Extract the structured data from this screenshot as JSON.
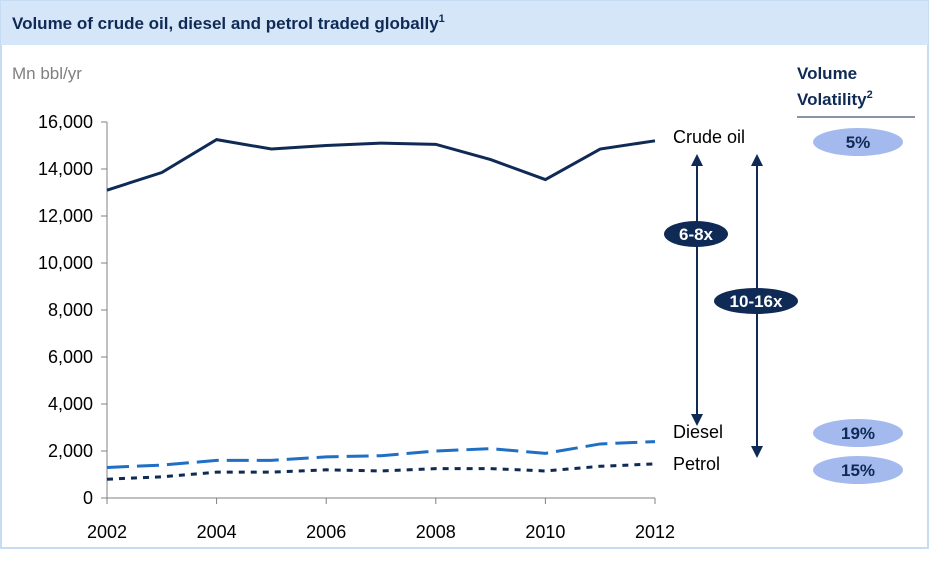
{
  "chart_data": {
    "type": "line",
    "title": "Volume of crude oil, diesel and petrol traded globally",
    "title_footnote": "1",
    "y_axis_label": "Mn bbl/yr",
    "x": [
      2002,
      2003,
      2004,
      2005,
      2006,
      2007,
      2008,
      2009,
      2010,
      2011,
      2012
    ],
    "xlim": [
      2002,
      2012
    ],
    "xticks": [
      2002,
      2004,
      2006,
      2008,
      2010,
      2012
    ],
    "ylim": [
      0,
      16000
    ],
    "yticks": [
      0,
      {
        "value": 2000,
        "label": "2,000"
      },
      {
        "value": 4000,
        "label": "4,000"
      },
      {
        "value": 6000,
        "label": "6,000"
      },
      {
        "value": 8000,
        "label": "8,000"
      },
      {
        "value": 10000,
        "label": "10,000"
      },
      {
        "value": 12000,
        "label": "12,000"
      },
      {
        "value": 14000,
        "label": "14,000"
      },
      {
        "value": 16000,
        "label": "16,000"
      }
    ],
    "series": [
      {
        "name": "Crude oil",
        "color": "#0f2a55",
        "dash": "solid",
        "values": [
          13100,
          13850,
          15250,
          14850,
          15000,
          15100,
          15050,
          14400,
          13550,
          14850,
          15200
        ]
      },
      {
        "name": "Diesel",
        "color": "#1f6fc4",
        "dash": "dashed",
        "values": [
          1300,
          1400,
          1600,
          1600,
          1750,
          1800,
          2000,
          2100,
          1900,
          2300,
          2400
        ]
      },
      {
        "name": "Petrol",
        "color": "#0f2a55",
        "dash": "dotted",
        "values": [
          800,
          900,
          1100,
          1100,
          1200,
          1150,
          1250,
          1250,
          1150,
          1350,
          1450
        ]
      }
    ],
    "volatility_header": [
      "Volume",
      "Volatility"
    ],
    "volatility_footnote": "2",
    "volatility": [
      5,
      19,
      15
    ],
    "volatility_labels": [
      "5%",
      "19%",
      "15%"
    ],
    "annotations": [
      "6-8x",
      "10-16x"
    ]
  }
}
